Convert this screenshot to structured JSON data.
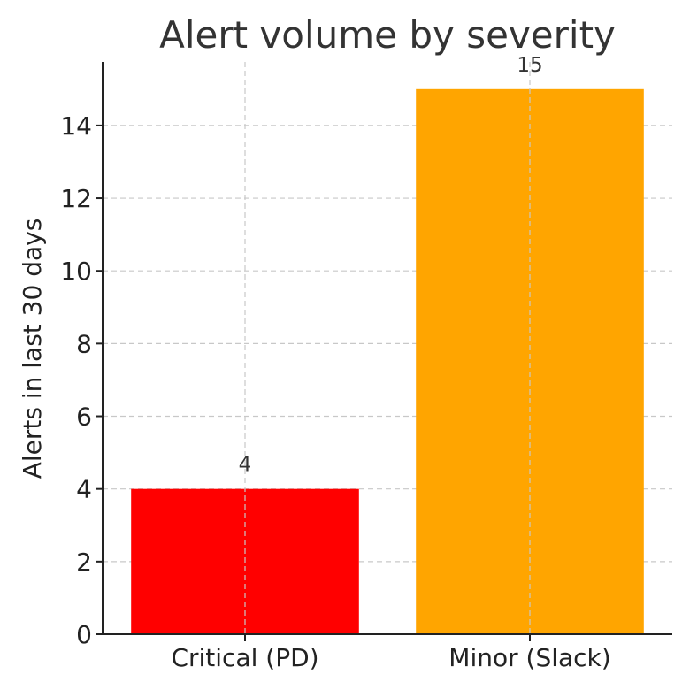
{
  "chart_data": {
    "type": "bar",
    "title": "Alert volume by severity",
    "xlabel": "",
    "ylabel": "Alerts in last 30 days",
    "categories": [
      "Critical (PD)",
      "Minor (Slack)"
    ],
    "values": [
      4,
      15
    ],
    "bar_colors": [
      "#ff0000",
      "#ffa500"
    ],
    "data_labels": [
      "4",
      "15"
    ],
    "ylim": [
      0,
      15.75
    ],
    "yticks": [
      0,
      2,
      4,
      6,
      8,
      10,
      12,
      14
    ],
    "grid": true,
    "legend": "none"
  }
}
